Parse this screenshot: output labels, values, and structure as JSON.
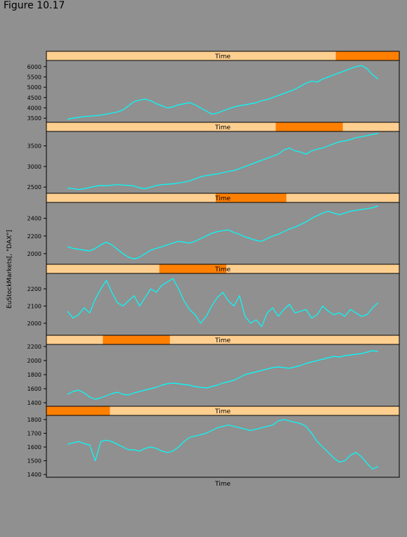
{
  "figure_title": "Figure 10.17",
  "chart_data": {
    "type": "line",
    "title": "",
    "xlabel": "Time",
    "ylabel": "EuStockMarkets[, \"DAX\"]",
    "strip_label": "Time",
    "colors": {
      "background": "#909090",
      "strip": "#ffcf90",
      "strip_highlight": "#ff7f00",
      "line": "#00ffff"
    },
    "panels": [
      {
        "shingle_range": [
          0.82,
          1.0
        ],
        "y_ticks": [
          3500,
          4000,
          4500,
          5000,
          5500,
          6000
        ],
        "ylim": [
          3300,
          6300
        ],
        "values": [
          3450,
          3500,
          3540,
          3580,
          3600,
          3620,
          3650,
          3700,
          3750,
          3800,
          3900,
          4100,
          4300,
          4380,
          4420,
          4350,
          4200,
          4100,
          4000,
          4050,
          4150,
          4200,
          4250,
          4150,
          4000,
          3850,
          3700,
          3750,
          3850,
          3950,
          4050,
          4100,
          4150,
          4200,
          4250,
          4350,
          4400,
          4500,
          4600,
          4700,
          4800,
          4900,
          5050,
          5200,
          5300,
          5250,
          5400,
          5500,
          5600,
          5700,
          5800,
          5900,
          6000,
          6050,
          5900,
          5600,
          5400
        ]
      },
      {
        "shingle_range": [
          0.65,
          0.84
        ],
        "y_ticks": [
          2500,
          3000,
          3500
        ],
        "ylim": [
          2350,
          3850
        ],
        "values": [
          2480,
          2460,
          2440,
          2460,
          2490,
          2520,
          2540,
          2530,
          2550,
          2560,
          2550,
          2540,
          2530,
          2480,
          2460,
          2500,
          2540,
          2560,
          2570,
          2580,
          2600,
          2620,
          2650,
          2700,
          2750,
          2780,
          2800,
          2820,
          2850,
          2880,
          2900,
          2950,
          3000,
          3050,
          3100,
          3150,
          3200,
          3250,
          3300,
          3400,
          3450,
          3380,
          3350,
          3300,
          3380,
          3420,
          3450,
          3500,
          3550,
          3600,
          3620,
          3650,
          3700,
          3720,
          3750,
          3780,
          3800
        ]
      },
      {
        "shingle_range": [
          0.48,
          0.68
        ],
        "y_ticks": [
          2000,
          2200,
          2400
        ],
        "ylim": [
          1880,
          2580
        ],
        "values": [
          2080,
          2060,
          2050,
          2040,
          2030,
          2060,
          2100,
          2130,
          2100,
          2050,
          2000,
          1960,
          1940,
          1960,
          2000,
          2040,
          2060,
          2080,
          2100,
          2120,
          2140,
          2130,
          2120,
          2140,
          2170,
          2200,
          2230,
          2250,
          2260,
          2270,
          2240,
          2220,
          2190,
          2170,
          2150,
          2140,
          2170,
          2200,
          2220,
          2250,
          2280,
          2300,
          2330,
          2360,
          2400,
          2430,
          2460,
          2480,
          2460,
          2440,
          2460,
          2480,
          2490,
          2500,
          2510,
          2520,
          2540
        ]
      },
      {
        "shingle_range": [
          0.32,
          0.51
        ],
        "y_ticks": [
          2000,
          2100,
          2200
        ],
        "ylim": [
          1930,
          2290
        ],
        "values": [
          2070,
          2030,
          2050,
          2090,
          2060,
          2140,
          2200,
          2250,
          2180,
          2120,
          2100,
          2130,
          2160,
          2100,
          2150,
          2200,
          2180,
          2220,
          2240,
          2260,
          2200,
          2130,
          2080,
          2050,
          2000,
          2040,
          2100,
          2150,
          2180,
          2130,
          2100,
          2160,
          2040,
          2000,
          2020,
          1980,
          2060,
          2090,
          2040,
          2080,
          2110,
          2060,
          2070,
          2080,
          2030,
          2050,
          2100,
          2070,
          2050,
          2060,
          2040,
          2080,
          2060,
          2040,
          2050,
          2090,
          2120
        ]
      },
      {
        "shingle_range": [
          0.16,
          0.35
        ],
        "y_ticks": [
          1400,
          1600,
          1800,
          2000,
          2200
        ],
        "ylim": [
          1350,
          2230
        ],
        "values": [
          1520,
          1560,
          1580,
          1540,
          1480,
          1450,
          1470,
          1500,
          1530,
          1550,
          1520,
          1510,
          1540,
          1560,
          1580,
          1600,
          1620,
          1650,
          1670,
          1680,
          1670,
          1660,
          1650,
          1630,
          1620,
          1610,
          1630,
          1650,
          1680,
          1700,
          1720,
          1760,
          1800,
          1820,
          1840,
          1860,
          1880,
          1900,
          1910,
          1900,
          1890,
          1910,
          1930,
          1960,
          1980,
          2000,
          2020,
          2040,
          2060,
          2050,
          2070,
          2080,
          2090,
          2100,
          2120,
          2140,
          2130
        ]
      },
      {
        "shingle_range": [
          0.0,
          0.18
        ],
        "y_ticks": [
          1400,
          1500,
          1600,
          1700,
          1800
        ],
        "ylim": [
          1380,
          1830
        ],
        "values": [
          1620,
          1630,
          1640,
          1625,
          1615,
          1500,
          1640,
          1650,
          1640,
          1620,
          1600,
          1580,
          1580,
          1570,
          1590,
          1600,
          1590,
          1570,
          1560,
          1570,
          1600,
          1640,
          1670,
          1680,
          1690,
          1700,
          1720,
          1740,
          1750,
          1760,
          1750,
          1740,
          1730,
          1720,
          1730,
          1740,
          1750,
          1760,
          1790,
          1800,
          1790,
          1780,
          1770,
          1750,
          1700,
          1640,
          1600,
          1560,
          1520,
          1490,
          1500,
          1540,
          1560,
          1530,
          1480,
          1440,
          1460
        ]
      }
    ]
  }
}
